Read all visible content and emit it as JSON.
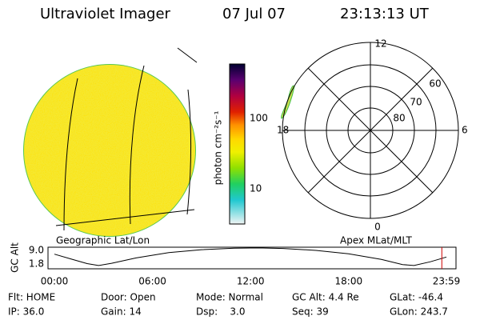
{
  "header": {
    "title": "Ultraviolet Imager",
    "date": "07 Jul 07",
    "time": "23:13:13 UT"
  },
  "colorbar": {
    "label": "photon cm⁻²s⁻¹",
    "ticks": [
      "100",
      "10"
    ]
  },
  "polar": {
    "labels": {
      "top": "12",
      "left": "18",
      "right": "6",
      "bottom": "0"
    },
    "rings": [
      "60",
      "70",
      "80"
    ]
  },
  "captions": {
    "left": "Geographic Lat/Lon",
    "right": "Apex MLat/MLT"
  },
  "altitude_plot": {
    "label": "GC Alt",
    "yticks": [
      {
        "value": 9.0,
        "label": "9.0"
      },
      {
        "value": 1.8,
        "label": "1.8"
      }
    ],
    "xticks": [
      {
        "value": 0,
        "label": "00:00"
      },
      {
        "value": 6,
        "label": "06:00"
      },
      {
        "value": 12,
        "label": "12:00"
      },
      {
        "value": 18,
        "label": "18:00"
      },
      {
        "value": 23.98,
        "label": "23:59"
      }
    ],
    "x": [
      0,
      1,
      2,
      2.7,
      3.5,
      5,
      7,
      9,
      11,
      12.5,
      14,
      16,
      18,
      20,
      21.3,
      22,
      23,
      23.98
    ],
    "values": [
      7.0,
      4.5,
      2.0,
      1.0,
      2.2,
      5.0,
      7.8,
      9.4,
      10.2,
      10.3,
      10.0,
      9.0,
      7.2,
      4.2,
      1.5,
      1.0,
      3.0,
      5.5
    ],
    "marker_hour": 23.7
  },
  "footer": {
    "rows": [
      [
        "Flt: HOME",
        "Door: Open",
        "Mode: Normal",
        "GC Alt: 4.4 Re",
        "GLat: -46.4"
      ],
      [
        "IP: 36.0",
        "Gain: 14",
        "Dsp:    3.0",
        "Seq: 39",
        "GLon: 243.7"
      ]
    ]
  }
}
